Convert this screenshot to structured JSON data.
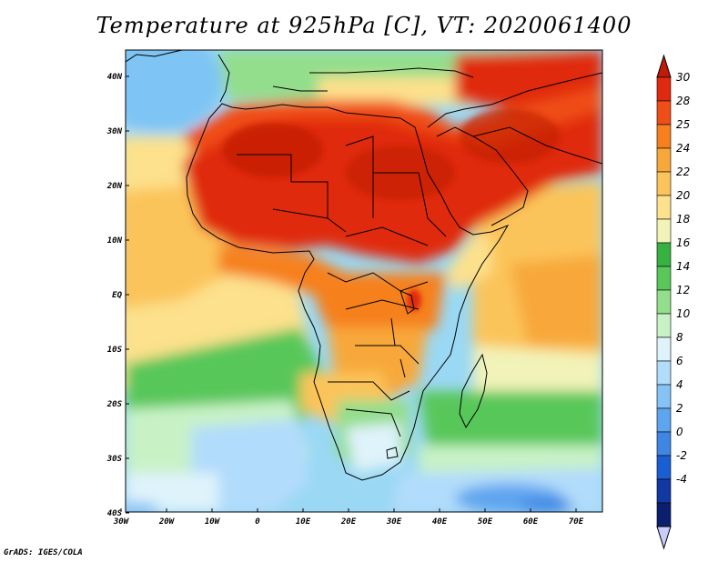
{
  "map": {
    "title": "Temperature at 925hPa [C], VT: 2020061400",
    "credit": "GrADS: IGES/COLA",
    "lon_labels": [
      "30W",
      "20W",
      "10W",
      "0",
      "10E",
      "20E",
      "30E",
      "40E",
      "50E",
      "60E",
      "70E"
    ],
    "lat_labels": [
      "40N",
      "30N",
      "20N",
      "10N",
      "EQ",
      "10S",
      "20S",
      "30S",
      "40S"
    ],
    "colorbar": {
      "labels": [
        "30",
        "28",
        "25",
        "24",
        "22",
        "20",
        "18",
        "16",
        "14",
        "12",
        "10",
        "8",
        "6",
        "4",
        "2",
        "0",
        "-2",
        "-4"
      ],
      "colors": [
        "#e02a10",
        "#f04e18",
        "#f6801e",
        "#f8a83a",
        "#fbc45a",
        "#fde18c",
        "#f2f3b8",
        "#37b241",
        "#59c75a",
        "#93de8c",
        "#c8f2c6",
        "#dff3fb",
        "#b2dcfb",
        "#86c2f5",
        "#5ea5ef",
        "#3f86e4",
        "#1a5ed4",
        "#1238a4",
        "#0c1e6e"
      ],
      "under_color": "#c8ccf6",
      "over_color": "#c01a08"
    }
  }
}
